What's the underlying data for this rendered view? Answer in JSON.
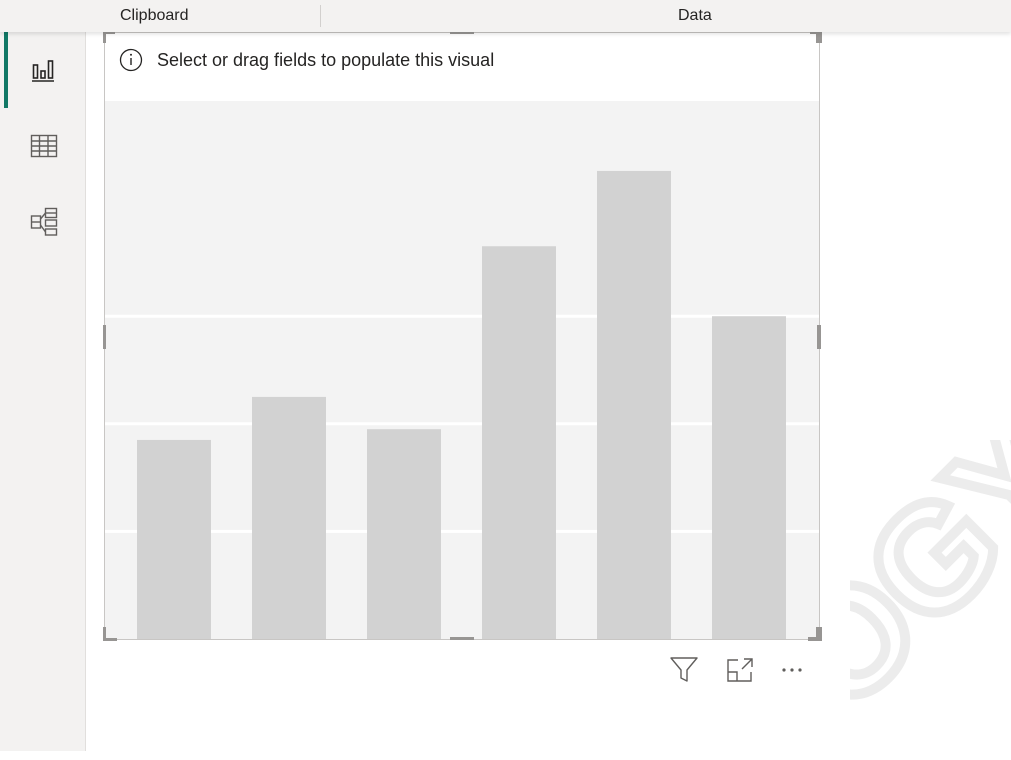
{
  "ribbon": {
    "groups": [
      "Clipboard",
      "Data"
    ]
  },
  "left_rail": {
    "items": [
      {
        "icon": "report-view-icon",
        "active": true
      },
      {
        "icon": "table-view-icon",
        "active": false
      },
      {
        "icon": "model-view-icon",
        "active": false
      }
    ]
  },
  "visual": {
    "hint": "Select or drag fields to populate this visual",
    "toolbar": {
      "icons": [
        "filter-icon",
        "focus-mode-icon",
        "more-options-icon"
      ],
      "more_label": "···"
    },
    "chart_data": {
      "type": "bar",
      "placeholder": true,
      "values": [
        37,
        45,
        39,
        73,
        87,
        60
      ],
      "ylim": [
        0,
        100
      ],
      "grid": true,
      "bar_color": "#d2d2d2",
      "grid_color": "#ffffff",
      "background": "#f3f3f3"
    }
  },
  "watermark": {
    "text": "OGY.C"
  },
  "colors": {
    "accent": "#117865",
    "rail_bg": "#f3f2f1",
    "icon": "#605e5c"
  }
}
